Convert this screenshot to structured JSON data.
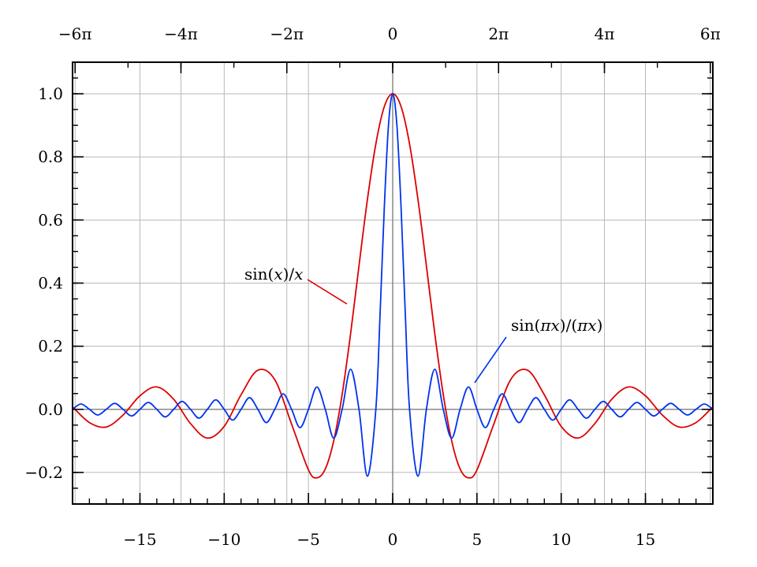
{
  "chart_data": {
    "type": "line",
    "title": "",
    "xlabel": "",
    "ylabel": "",
    "xlim": [
      -19,
      19
    ],
    "ylim": [
      -0.3,
      1.1
    ],
    "grid": true,
    "x_ticks_bottom": [
      {
        "value": -15,
        "label": "−15"
      },
      {
        "value": -10,
        "label": "−10"
      },
      {
        "value": -5,
        "label": "−5"
      },
      {
        "value": 0,
        "label": "0"
      },
      {
        "value": 5,
        "label": "5"
      },
      {
        "value": 10,
        "label": "10"
      },
      {
        "value": 15,
        "label": "15"
      }
    ],
    "x_ticks_top": [
      {
        "value": -18.8496,
        "label": "−6π"
      },
      {
        "value": -12.5664,
        "label": "−4π"
      },
      {
        "value": -6.2832,
        "label": "−2π"
      },
      {
        "value": 0,
        "label": "0"
      },
      {
        "value": 6.2832,
        "label": "2π"
      },
      {
        "value": 12.5664,
        "label": "4π"
      },
      {
        "value": 18.8496,
        "label": "6π"
      }
    ],
    "y_ticks": [
      {
        "value": -0.2,
        "label": "−0.2"
      },
      {
        "value": 0.0,
        "label": "0.0"
      },
      {
        "value": 0.2,
        "label": "0.2"
      },
      {
        "value": 0.4,
        "label": "0.4"
      },
      {
        "value": 0.6,
        "label": "0.6"
      },
      {
        "value": 0.8,
        "label": "0.8"
      },
      {
        "value": 1.0,
        "label": "1.0"
      }
    ],
    "series": [
      {
        "color": "#dd0000",
        "x": [
          -19,
          -18,
          -17,
          -16,
          -15,
          -14,
          -13,
          -12,
          -11,
          -10,
          -9,
          -8,
          -7,
          -6,
          -5,
          -4.5,
          -4,
          -3.5,
          -3,
          -2.5,
          -2,
          -1.5,
          -1,
          -0.5,
          0,
          0.5,
          1,
          1.5,
          2,
          2.5,
          3,
          3.5,
          4,
          4.5,
          5,
          6,
          7,
          8,
          9,
          10,
          11,
          12,
          13,
          14,
          15,
          16,
          17,
          18,
          19
        ],
        "y": [
          0.008,
          -0.042,
          -0.056,
          -0.018,
          0.043,
          0.071,
          0.032,
          -0.045,
          -0.091,
          -0.054,
          0.046,
          0.124,
          0.094,
          -0.047,
          -0.192,
          -0.217,
          -0.189,
          -0.1,
          0.047,
          0.239,
          0.455,
          0.665,
          0.841,
          0.959,
          1.0,
          0.959,
          0.841,
          0.665,
          0.455,
          0.239,
          0.047,
          -0.1,
          -0.189,
          -0.217,
          -0.192,
          -0.047,
          0.094,
          0.124,
          0.046,
          -0.054,
          -0.091,
          -0.045,
          0.032,
          0.071,
          0.043,
          -0.018,
          -0.056,
          -0.042,
          0.008
        ]
      },
      {
        "color": "#0033ee",
        "x": [
          -19,
          -18.5,
          -18,
          -17.5,
          -17,
          -16.5,
          -16,
          -15.5,
          -15,
          -14.5,
          -14,
          -13.5,
          -13,
          -12.5,
          -12,
          -11.5,
          -11,
          -10.5,
          -10,
          -9.5,
          -9,
          -8.5,
          -8,
          -7.5,
          -7,
          -6.5,
          -6,
          -5.5,
          -5,
          -4.5,
          -4,
          -3.5,
          -3,
          -2.5,
          -2,
          -1.5,
          -1,
          -0.75,
          -0.5,
          -0.25,
          0,
          0.25,
          0.5,
          0.75,
          1,
          1.5,
          2,
          2.5,
          3,
          3.5,
          4,
          4.5,
          5,
          5.5,
          6,
          6.5,
          7,
          7.5,
          8,
          8.5,
          9,
          9.5,
          10,
          10.5,
          11,
          11.5,
          12,
          12.5,
          13,
          13.5,
          14,
          14.5,
          15,
          15.5,
          16,
          16.5,
          17,
          17.5,
          18,
          18.5,
          19
        ],
        "y": [
          0.0,
          0.017,
          0.0,
          -0.018,
          0.0,
          0.019,
          0.0,
          -0.021,
          0.0,
          0.022,
          0.0,
          -0.024,
          0.0,
          0.025,
          0.0,
          -0.028,
          0.0,
          0.03,
          0.0,
          -0.034,
          0.0,
          0.037,
          0.0,
          -0.042,
          0.0,
          0.049,
          0.0,
          -0.058,
          0.0,
          0.071,
          0.0,
          -0.091,
          0.0,
          0.127,
          0.0,
          -0.212,
          0.0,
          0.3,
          0.637,
          0.9,
          1.0,
          0.9,
          0.637,
          0.3,
          0.0,
          -0.212,
          0.0,
          0.127,
          0.0,
          -0.091,
          0.0,
          0.071,
          0.0,
          -0.058,
          0.0,
          0.049,
          0.0,
          -0.042,
          0.0,
          0.037,
          0.0,
          -0.034,
          0.0,
          0.03,
          0.0,
          -0.028,
          0.0,
          0.025,
          0.0,
          -0.024,
          0.0,
          0.022,
          0.0,
          -0.021,
          0.0,
          0.019,
          0.0,
          -0.018,
          0.0,
          0.017,
          0.0
        ]
      }
    ],
    "annotations": {
      "sinc_label_prefix": "sin(",
      "sinc_label_var": "x",
      "sinc_label_mid": ")/",
      "sinc_label_var2": "x",
      "npinc_label_prefix": "sin(",
      "npinc_label_pi": "π",
      "npinc_label_var": "x",
      "npinc_label_mid": ")/(",
      "npinc_label_pi2": "π",
      "npinc_label_var2": "x",
      "npinc_label_suffix": ")"
    }
  }
}
